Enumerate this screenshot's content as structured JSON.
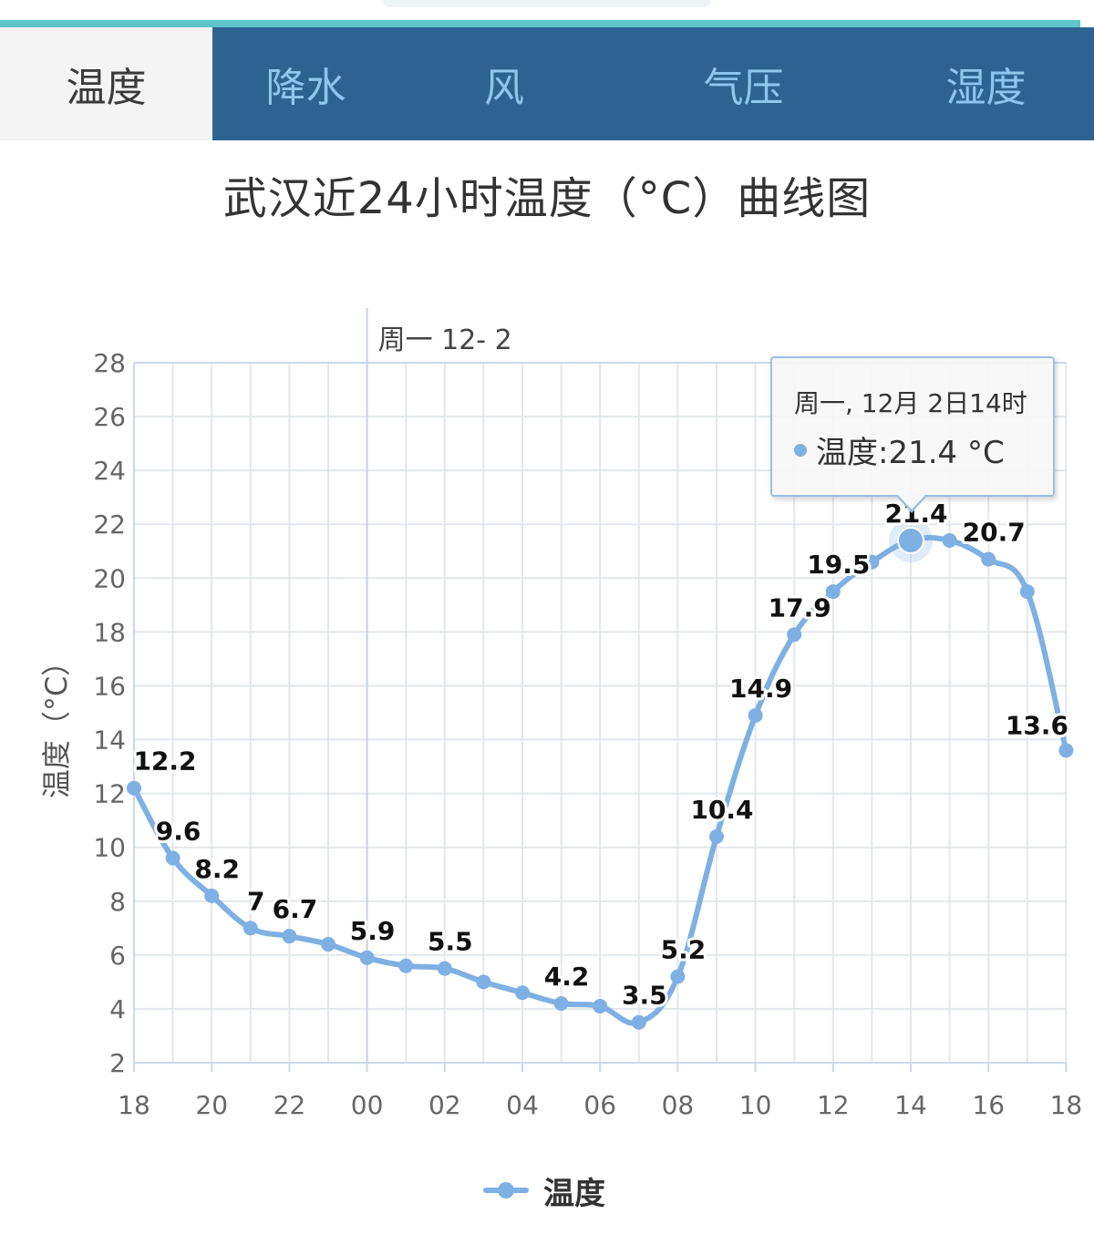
{
  "tabs": [
    {
      "label": "温度",
      "active": true
    },
    {
      "label": "降水",
      "active": false
    },
    {
      "label": "风",
      "active": false
    },
    {
      "label": "气压",
      "active": false
    },
    {
      "label": "湿度",
      "active": false
    }
  ],
  "chart_data": {
    "type": "line",
    "title": "武汉近24小时温度（°C）曲线图",
    "ylabel": "温度（°C）",
    "xlabel": "",
    "ylim": [
      2,
      28
    ],
    "yticks": [
      2,
      4,
      6,
      8,
      10,
      12,
      14,
      16,
      18,
      20,
      22,
      24,
      26,
      28
    ],
    "x_tick_labels": [
      "18",
      "20",
      "22",
      "00",
      "02",
      "04",
      "06",
      "08",
      "10",
      "12",
      "14",
      "16",
      "18"
    ],
    "day_marker": "周一 12- 2",
    "grid": true,
    "color": "#7eb0e3",
    "series": [
      {
        "name": "温度",
        "x": [
          "18",
          "19",
          "20",
          "21",
          "22",
          "23",
          "00",
          "01",
          "02",
          "03",
          "04",
          "05",
          "06",
          "07",
          "08",
          "09",
          "10",
          "11",
          "12",
          "13",
          "14",
          "15",
          "16",
          "17",
          "18"
        ],
        "values": [
          12.2,
          9.6,
          8.2,
          7,
          6.7,
          6.4,
          5.9,
          5.6,
          5.5,
          5,
          4.6,
          4.2,
          4.1,
          3.5,
          5.2,
          10.4,
          14.9,
          17.9,
          19.5,
          20.6,
          21.4,
          21.4,
          20.7,
          19.5,
          13.6
        ],
        "labels": [
          "12.2",
          "9.6",
          "8.2",
          "7",
          "6.7",
          "",
          "5.9",
          "",
          "5.5",
          "",
          "",
          "4.2",
          "",
          "3.5",
          "5.2",
          "10.4",
          "14.9",
          "17.9",
          "19.5",
          "",
          "21.4",
          "",
          "20.7",
          "",
          "13.6"
        ]
      }
    ],
    "legend": "bottom",
    "tooltip": {
      "header": "周一, 12月 2日14时",
      "row": "温度:21.4 °C",
      "index": 20
    }
  }
}
